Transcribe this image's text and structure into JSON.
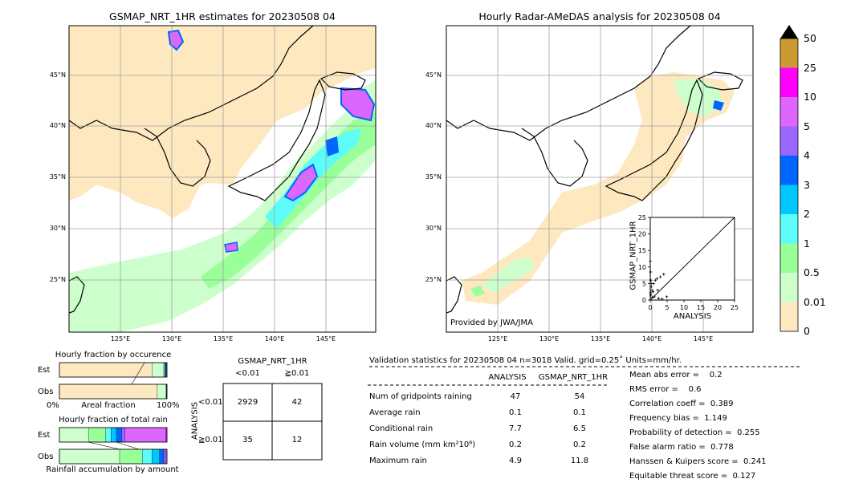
{
  "colors": {
    "land_fill": "#fde8bf",
    "sea_fill": "#ffffff",
    "coast": "#000000",
    "grid": "#a0a0a0"
  },
  "maps": [
    {
      "title": "GSMAP_NRT_1HR estimates for 20230508 04",
      "lat_labels": [
        "45°N",
        "40°N",
        "35°N",
        "30°N",
        "25°N"
      ],
      "lon_labels": [
        "125°E",
        "130°E",
        "135°E",
        "140°E",
        "145°E"
      ]
    },
    {
      "title": "Hourly Radar-AMeDAS analysis for 20230508 04",
      "lat_labels": [
        "45°N",
        "40°N",
        "35°N",
        "30°N",
        "25°N"
      ],
      "lon_labels": [
        "125°E",
        "130°E",
        "135°E",
        "140°E",
        "145°E"
      ],
      "credit": "Provided by JWA/JMA"
    }
  ],
  "colorbar": {
    "labels": [
      "50",
      "25",
      "10",
      "5",
      "4",
      "3",
      "2",
      "1",
      "0.5",
      "0.01",
      "0"
    ],
    "colors": [
      "#cc9933",
      "#ff00ff",
      "#dd66ff",
      "#9966ff",
      "#0066ff",
      "#00c8ff",
      "#5efcf8",
      "#99ff99",
      "#ccffcc",
      "#fde8bf"
    ]
  },
  "fraction_occurrence": {
    "title": "Hourly fraction by occurence",
    "row_labels": [
      "Est",
      "Obs"
    ],
    "axis_left": "0%",
    "axis_mid": "Areal fraction",
    "axis_right": "100%"
  },
  "fraction_total": {
    "title": "Hourly fraction of total rain",
    "row_labels": [
      "Est",
      "Obs"
    ],
    "footer": "Rainfall accumulation by amount"
  },
  "contingency": {
    "title": "GSMAP_NRT_1HR",
    "col_labels": [
      "<0.01",
      "≧0.01"
    ],
    "row_axis": "ANALYSIS",
    "row_labels": [
      "<0.01",
      "≧0.01"
    ],
    "cells": [
      [
        "2929",
        "42"
      ],
      [
        "35",
        "12"
      ]
    ]
  },
  "validation": {
    "header": "Validation statistics for 20230508 04  n=3018 Valid. grid=0.25˚ Units=mm/hr.",
    "col_headers": [
      "ANALYSIS",
      "GSMAP_NRT_1HR"
    ],
    "rows": [
      {
        "label": "Num of gridpoints raining",
        "analysis": "47",
        "gsmap": "54"
      },
      {
        "label": "Average rain",
        "analysis": "0.1",
        "gsmap": "0.1"
      },
      {
        "label": "Conditional rain",
        "analysis": "7.7",
        "gsmap": "6.5"
      },
      {
        "label": "Rain volume (mm km²10⁶)",
        "analysis": "0.2",
        "gsmap": "0.2"
      },
      {
        "label": "Maximum rain",
        "analysis": "4.9",
        "gsmap": "11.8"
      }
    ],
    "scores": [
      "Mean abs error =    0.2",
      "RMS error =    0.6",
      "Correlation coeff =  0.389",
      "Frequency bias =  1.149",
      "Probability of detection =  0.255",
      "False alarm ratio =  0.778",
      "Hanssen & Kuipers score =  0.241",
      "Equitable threat score =  0.127"
    ]
  },
  "chart_data": [
    {
      "type": "bar",
      "title": "Hourly fraction by occurence",
      "categories": [
        "Est",
        "Obs"
      ],
      "series": [
        {
          "values": [
            0.86,
            0.91
          ],
          "color": "#fde8bf"
        },
        {
          "values": [
            0.11,
            0.08
          ],
          "color": "#ccffcc"
        },
        {
          "values": [
            0.01,
            0.005
          ],
          "color": "#99ff99"
        },
        {
          "values": [
            0.01,
            0.005
          ],
          "color": "#0066ff"
        },
        {
          "values": [
            0.01,
            0.0
          ],
          "color": "#555555"
        }
      ],
      "xlim": [
        0,
        1
      ]
    },
    {
      "type": "bar",
      "title": "Hourly fraction of total rain",
      "categories": [
        "Est",
        "Obs"
      ],
      "series": [
        {
          "values": [
            0.27,
            0.56
          ],
          "color": "#ccffcc"
        },
        {
          "values": [
            0.16,
            0.21
          ],
          "color": "#99ff99"
        },
        {
          "values": [
            0.05,
            0.09
          ],
          "color": "#5efcf8"
        },
        {
          "values": [
            0.05,
            0.07
          ],
          "color": "#00c8ff"
        },
        {
          "values": [
            0.05,
            0.04
          ],
          "color": "#0066ff"
        },
        {
          "values": [
            0.03,
            0.02
          ],
          "color": "#9966ff"
        },
        {
          "values": [
            0.38,
            0.01
          ],
          "color": "#dd66ff"
        },
        {
          "values": [
            0.01,
            0.0
          ],
          "color": "#ff00ff"
        }
      ],
      "xlim": [
        0,
        1
      ]
    },
    {
      "type": "scatter",
      "ylabel": "GSMAP_NRT_1HR",
      "xlabel": "ANALYSIS",
      "xlim": [
        0,
        25
      ],
      "ylim": [
        0,
        25
      ],
      "ticks": [
        0,
        5,
        10,
        15,
        20,
        25
      ],
      "points": [
        [
          0.1,
          8.5
        ],
        [
          0.2,
          6.0
        ],
        [
          0.3,
          4.0
        ],
        [
          0.5,
          3.0
        ],
        [
          0.8,
          2.5
        ],
        [
          1.0,
          5.0
        ],
        [
          1.5,
          6.0
        ],
        [
          2.0,
          6.5
        ],
        [
          3.0,
          7.0
        ],
        [
          1.2,
          1.0
        ],
        [
          0.2,
          1.5
        ],
        [
          0.6,
          0.8
        ],
        [
          2.5,
          0.5
        ],
        [
          4.0,
          7.8
        ],
        [
          0.1,
          2.2
        ],
        [
          0.4,
          5.0
        ],
        [
          2.2,
          3.0
        ],
        [
          0.0,
          11.8
        ],
        [
          4.9,
          1.0
        ],
        [
          3.5,
          0.3
        ]
      ]
    }
  ]
}
